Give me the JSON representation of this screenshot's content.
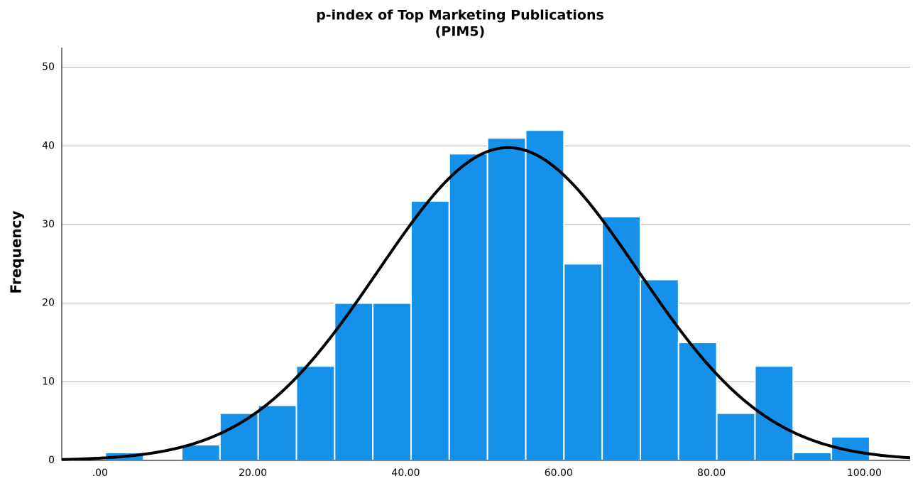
{
  "chart_data": {
    "type": "histogram",
    "title": "p-index of Top Marketing Publications",
    "subtitle": "(PIM5)",
    "y_label": "Frequency",
    "bins": [
      0.7,
      5.7,
      10.7,
      15.7,
      20.7,
      25.7,
      30.7,
      35.7,
      40.7,
      45.7,
      50.7,
      55.7,
      60.7,
      65.7,
      70.7,
      75.7,
      80.7,
      85.7,
      90.7,
      95.7,
      100.7
    ],
    "values": [
      1,
      0,
      2,
      6,
      7,
      12,
      20,
      20,
      33,
      39,
      41,
      42,
      25,
      31,
      23,
      15,
      6,
      12,
      1,
      3
    ],
    "color": "#1591ea",
    "normal_curve": {
      "mean": 53.4,
      "std": 17.0,
      "color": "#000000"
    },
    "xlim": [
      -5,
      106
    ],
    "xticks": [
      {
        "value": 0,
        "label": ".00"
      },
      {
        "value": 20,
        "label": "20.00"
      },
      {
        "value": 40,
        "label": "40.00"
      },
      {
        "value": 60,
        "label": "60.00"
      },
      {
        "value": 80,
        "label": "80.00"
      },
      {
        "value": 100,
        "label": "100.00"
      }
    ],
    "ylim": [
      0,
      52.5
    ],
    "yticks": [
      0,
      10,
      20,
      30,
      40,
      50
    ],
    "grid": true
  }
}
